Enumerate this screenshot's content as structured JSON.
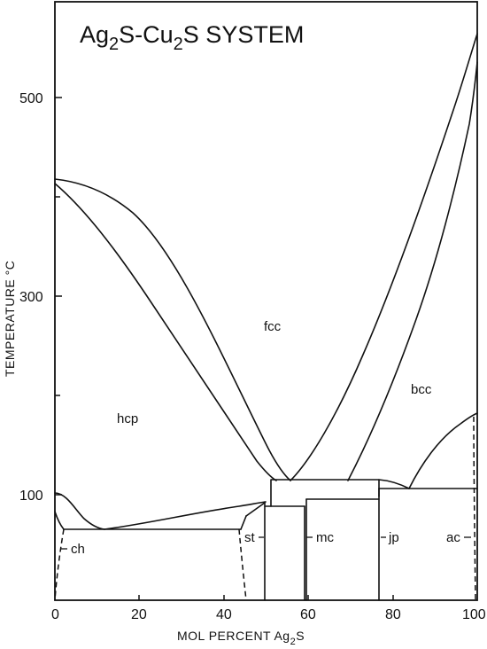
{
  "title": {
    "part1": "Ag",
    "sub1": "2",
    "part2": "S-Cu",
    "sub2": "2",
    "part3": "S  SYSTEM"
  },
  "axes": {
    "xlabel_main": "MOL PERCENT Ag",
    "xlabel_sub": "2",
    "xlabel_end": "S",
    "ylabel": "TEMPERATURE °C",
    "x_ticks": [
      "0",
      "20",
      "40",
      "60",
      "80",
      "100"
    ],
    "y_ticks": [
      "100",
      "300",
      "500"
    ],
    "xlim": [
      0,
      100
    ],
    "ylim": [
      0,
      600
    ]
  },
  "phases": {
    "hcp": "hcp",
    "fcc": "fcc",
    "bcc": "bcc",
    "ch": "ch",
    "st": "st",
    "mc": "mc",
    "jp": "jp",
    "ac": "ac"
  },
  "chart_data": {
    "type": "phase-diagram",
    "x_unit": "mol % Ag2S",
    "y_unit": "°C",
    "boundaries": {
      "hcp_fcc_upper": [
        [
          0,
          420
        ],
        [
          3,
          418
        ],
        [
          9,
          410
        ],
        [
          15,
          395
        ],
        [
          20,
          375
        ],
        [
          25,
          345
        ],
        [
          30,
          310
        ],
        [
          35,
          272
        ],
        [
          40,
          232
        ],
        [
          45,
          190
        ],
        [
          50,
          145
        ],
        [
          56,
          110
        ]
      ],
      "hcp_fcc_lower": [
        [
          0,
          410
        ],
        [
          4,
          395
        ],
        [
          10,
          360
        ],
        [
          16,
          320
        ],
        [
          22,
          275
        ],
        [
          28,
          230
        ],
        [
          34,
          188
        ],
        [
          40,
          152
        ],
        [
          46,
          125
        ],
        [
          53,
          108
        ]
      ],
      "fcc_bcc_upper": [
        [
          56,
          110
        ],
        [
          62,
          135
        ],
        [
          68,
          175
        ],
        [
          74,
          225
        ],
        [
          80,
          285
        ],
        [
          85,
          345
        ],
        [
          90,
          410
        ],
        [
          95,
          480
        ],
        [
          98,
          550
        ],
        [
          100,
          586
        ]
      ],
      "fcc_bcc_lower": [
        [
          70,
          110
        ],
        [
          75,
          140
        ],
        [
          80,
          185
        ],
        [
          84,
          235
        ],
        [
          88,
          295
        ],
        [
          92,
          370
        ],
        [
          96,
          460
        ],
        [
          99,
          540
        ],
        [
          100,
          570
        ]
      ],
      "eutectoid_line": [
        [
          51,
          110
        ],
        [
          77,
          110
        ]
      ],
      "bcc_ac_boundary": [
        [
          85,
          103
        ],
        [
          88,
          120
        ],
        [
          92,
          145
        ],
        [
          96,
          163
        ],
        [
          100,
          170
        ]
      ],
      "hcp_ch_boundary": [
        [
          0,
          102
        ],
        [
          3,
          96
        ],
        [
          7,
          78
        ],
        [
          12,
          67
        ],
        [
          20,
          69
        ],
        [
          30,
          76
        ],
        [
          40,
          83
        ],
        [
          50,
          90
        ]
      ],
      "monotectoid_plateaus": [
        {
          "x": [
            2,
            44
          ],
          "t": 67
        },
        {
          "x": [
            50,
            59
          ],
          "t": 90
        },
        {
          "x": [
            60,
            77
          ],
          "t": 95
        },
        {
          "x": [
            77,
            100
          ],
          "t": 105
        }
      ],
      "vertical_phase_limits": [
        50,
        59,
        77,
        100
      ]
    }
  },
  "colors": {
    "ink": "#111111",
    "paper": "#ffffff"
  }
}
